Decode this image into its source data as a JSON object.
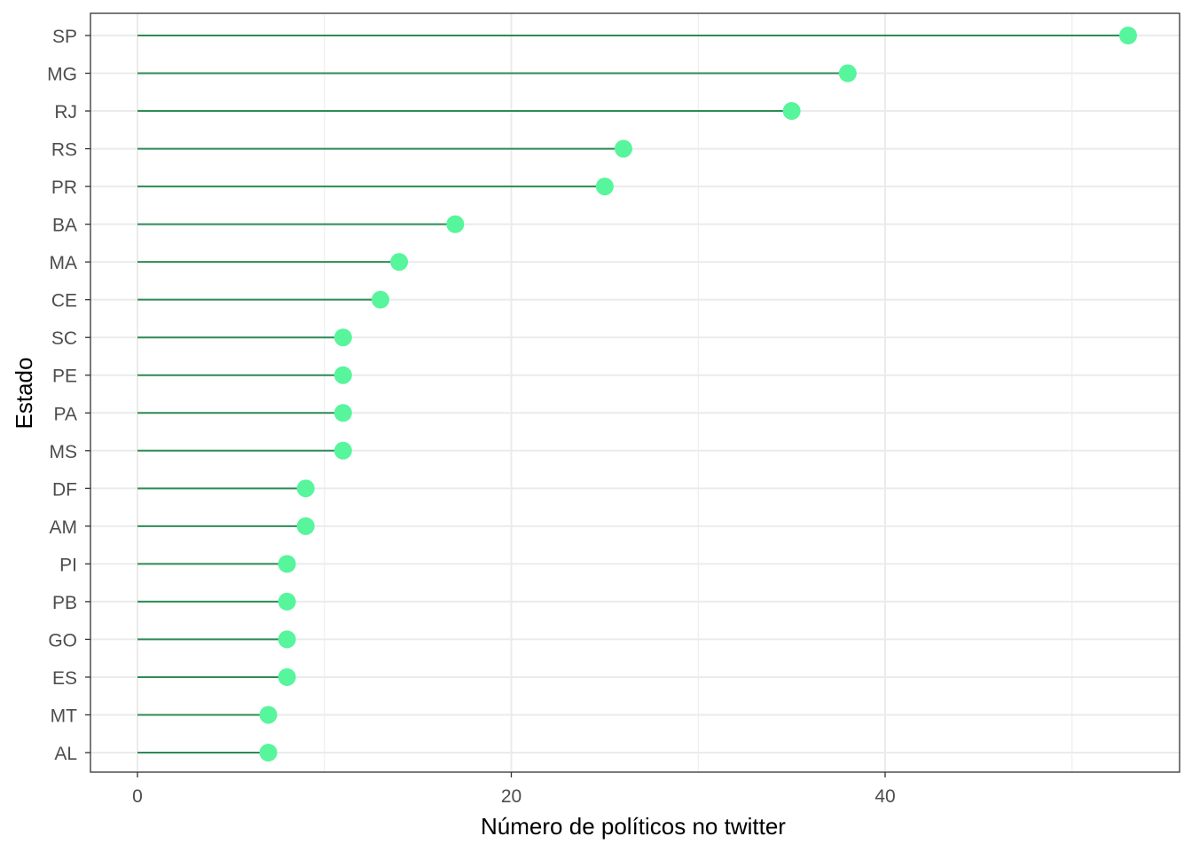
{
  "colors": {
    "segment": "#2e8b57",
    "point": "#57f59c",
    "grid": "#ebebeb",
    "panel_border": "#333333",
    "tick_label": "#4d4d4d",
    "axis_title": "#000000"
  },
  "chart_data": {
    "type": "lollipop",
    "title": "",
    "xlabel": "Número de políticos no twitter",
    "ylabel": "Estado",
    "xlim": [
      -2.5,
      55.5
    ],
    "x_ticks": [
      0,
      20,
      40
    ],
    "x_tick_labels": [
      "0",
      "20",
      "40"
    ],
    "x_minor_ticks": [
      10,
      30,
      50
    ],
    "grid": true,
    "legend": "none",
    "categories": [
      "SP",
      "MG",
      "RJ",
      "RS",
      "PR",
      "BA",
      "MA",
      "CE",
      "SC",
      "PE",
      "PA",
      "MS",
      "DF",
      "AM",
      "PI",
      "PB",
      "GO",
      "ES",
      "MT",
      "AL"
    ],
    "values": [
      53,
      38,
      35,
      26,
      25,
      17,
      14,
      13,
      11,
      11,
      11,
      11,
      9,
      9,
      8,
      8,
      8,
      8,
      7,
      7
    ]
  }
}
